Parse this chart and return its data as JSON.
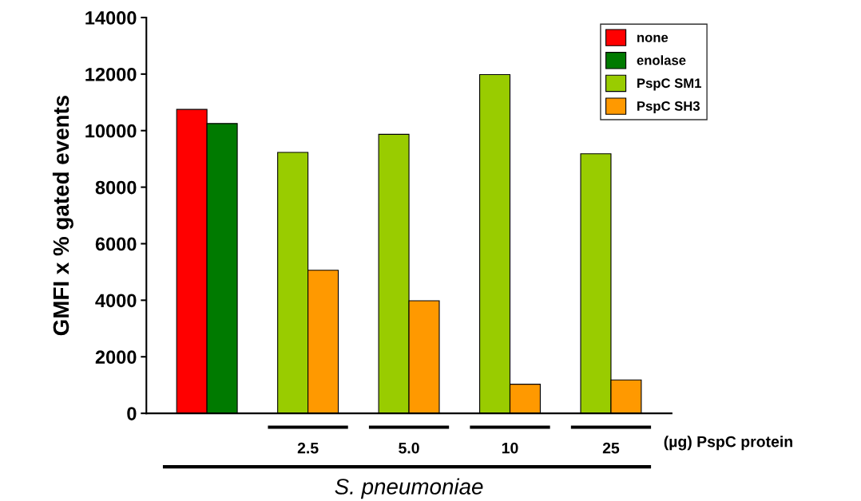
{
  "chart_data": {
    "type": "bar",
    "ylabel": "GMFI x % gated events",
    "categories": [
      null,
      "2.5",
      "5.0",
      "10",
      "25"
    ],
    "series": [
      {
        "name": "none",
        "color": "#ff0000",
        "values": [
          10750,
          null,
          null,
          null,
          null
        ]
      },
      {
        "name": "enolase",
        "color": "#007a00",
        "values": [
          10250,
          null,
          null,
          null,
          null
        ]
      },
      {
        "name": "PspC SM1",
        "color": "#99cc00",
        "values": [
          null,
          9230,
          9870,
          11980,
          9180
        ]
      },
      {
        "name": "PspC SH3",
        "color": "#ff9900",
        "values": [
          null,
          5060,
          3980,
          1030,
          1180
        ]
      }
    ],
    "ylim": [
      0,
      14000
    ],
    "yticks": [
      0,
      2000,
      4000,
      6000,
      8000,
      10000,
      12000,
      14000
    ],
    "grid": false,
    "legend": "top right",
    "annotations": [
      "(µg) PspC protein",
      "S. pneumoniae"
    ]
  }
}
